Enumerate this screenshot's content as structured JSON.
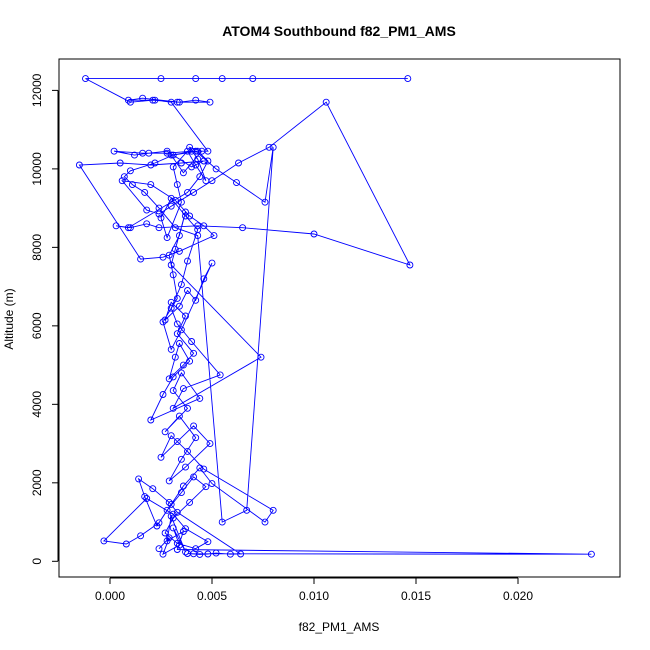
{
  "chart_data": {
    "type": "line",
    "title": "ATOM4 Southbound f82_PM1_AMS",
    "xlabel": "f82_PM1_AMS",
    "ylabel": "Altitude (m)",
    "xlim": [
      -0.0025,
      0.025
    ],
    "ylim": [
      -400,
      12800
    ],
    "x_ticks": [
      0.0,
      0.005,
      0.01,
      0.015,
      0.02
    ],
    "x_tick_labels": [
      "0.000",
      "0.005",
      "0.010",
      "0.015",
      "0.020"
    ],
    "y_ticks": [
      0,
      2000,
      4000,
      6000,
      8000,
      10000,
      12000
    ],
    "y_tick_labels": [
      "0",
      "2000",
      "4000",
      "6000",
      "8000",
      "10000",
      "12000"
    ],
    "grid": false,
    "marker": "open-circle",
    "color": "#0000ff",
    "series": [
      {
        "name": "f82_PM1_AMS",
        "x": [
          0.0024,
          0.0029,
          0.0026,
          0.0034,
          0.0031,
          0.0037,
          0.003,
          0.0028,
          0.0036,
          0.0033,
          0.0236,
          0.0041,
          0.0038,
          0.0044,
          0.0048,
          0.0052,
          0.0059,
          0.0064,
          0.0033,
          0.0029,
          0.0021,
          0.0014,
          0.0017,
          0.0023,
          0.0028,
          0.0035,
          0.0041,
          0.0047,
          0.0039,
          0.0031,
          0.0027,
          0.0033,
          0.0042,
          0.0048,
          0.0037,
          0.0031,
          0.0018,
          -0.0003,
          0.0008,
          0.0015,
          0.0024,
          0.003,
          0.0036,
          0.0044,
          0.005,
          0.0076,
          0.008,
          0.0046,
          0.0038,
          0.003,
          0.0025,
          0.0033,
          0.0041,
          0.0049,
          0.0037,
          0.0029,
          0.0035,
          0.0042,
          0.0034,
          0.0027,
          0.0038,
          0.0031,
          0.0035,
          0.0044,
          0.002,
          0.0026,
          0.0031,
          0.0039,
          0.0034,
          0.0032,
          0.0029,
          0.0036,
          0.0041,
          0.0033,
          0.0037,
          0.003,
          0.0027,
          0.0034,
          0.0038,
          0.0042,
          0.0046,
          0.005,
          0.0035,
          0.003,
          0.0026,
          0.0033,
          0.0031,
          0.0029,
          0.0034,
          0.0037,
          0.0032,
          0.003,
          0.0074,
          0.0031,
          0.0036,
          0.0054,
          0.004,
          0.0033,
          0.003,
          0.0035,
          0.0038,
          0.0043,
          0.0037,
          0.003,
          0.0025,
          0.0028,
          0.0035,
          0.0033,
          0.0031,
          0.0038,
          0.0042,
          0.0047,
          0.0043,
          0.0039,
          0.0045,
          0.0036,
          0.003,
          0.0042,
          0.0052,
          0.0062,
          0.0076,
          0.008,
          0.0067,
          0.0055,
          0.0043,
          0.0032,
          0.0024,
          0.0017,
          0.0011,
          0.0007,
          0.001,
          0.0022,
          0.0031,
          0.0043,
          0.0048,
          0.0044,
          0.0038,
          0.0009,
          0.0003,
          0.001,
          0.0018,
          0.0024,
          0.0043,
          0.0065,
          0.01,
          0.0147,
          0.0106,
          0.0078,
          0.0063,
          0.005,
          0.0041,
          0.003,
          0.0024,
          0.0018,
          0.0006,
          0.002,
          0.0032,
          0.0039,
          0.0046,
          0.0051,
          0.0034,
          0.0026,
          0.0015,
          -0.0015,
          0.0005,
          0.002,
          0.0035,
          0.0046,
          0.004,
          0.0028,
          0.0019,
          0.0012,
          0.0002,
          0.0016,
          0.0028,
          0.004,
          0.0048,
          0.003,
          0.0022,
          0.0009,
          0.0016,
          0.0034,
          0.0042,
          0.0049,
          0.0033,
          0.0021,
          0.001,
          -0.0012,
          0.0025,
          0.0055,
          0.007,
          0.0146,
          0.0042
        ]
      }
    ],
    "y": [
      320,
      600,
      180,
      410,
      850,
      240,
      1150,
      520,
      760,
      300,
      180,
      190,
      200,
      175,
      185,
      210,
      180,
      185,
      1250,
      1500,
      1850,
      2100,
      1650,
      900,
      1300,
      1750,
      2150,
      1900,
      1500,
      1100,
      720,
      460,
      320,
      500,
      830,
      1200,
      1600,
      520,
      440,
      650,
      980,
      1450,
      1920,
      2380,
      1980,
      1000,
      1300,
      2350,
      2800,
      3200,
      2650,
      3050,
      3450,
      3000,
      2400,
      2050,
      2600,
      3150,
      3700,
      3300,
      3900,
      4350,
      4800,
      4150,
      3600,
      4250,
      4700,
      5100,
      5550,
      5200,
      4650,
      5000,
      5300,
      5800,
      6250,
      6600,
      6150,
      6500,
      6900,
      6650,
      7200,
      7600,
      5900,
      5400,
      6100,
      6700,
      7300,
      7800,
      8300,
      8900,
      7950,
      7550,
      5200,
      3900,
      4400,
      4750,
      5600,
      6050,
      6450,
      7050,
      7650,
      8450,
      8800,
      9250,
      8750,
      8250,
      9150,
      9600,
      10050,
      10450,
      10100,
      9700,
      10250,
      10550,
      10450,
      9900,
      10350,
      10450,
      10000,
      9650,
      9150,
      10550,
      1300,
      1000,
      8300,
      8500,
      9000,
      9400,
      9600,
      9800,
      9950,
      10150,
      10350,
      10450,
      10200,
      9800,
      9400,
      8500,
      8550,
      8500,
      8600,
      8500,
      8550,
      8500,
      8340,
      7550,
      11700,
      10550,
      10150,
      9700,
      9400,
      9050,
      8850,
      8950,
      9700,
      9600,
      9200,
      8800,
      8550,
      8300,
      7900,
      7750,
      7700,
      10100,
      10150,
      10100,
      10150,
      10200,
      10050,
      10450,
      10400,
      10350,
      10450,
      10400,
      10400,
      10450,
      10450,
      11700,
      11750,
      11750,
      11800,
      11700,
      11750,
      11700,
      11700,
      11750,
      11700,
      12300,
      12300,
      12300,
      12300,
      12300,
      12300
    ]
  }
}
